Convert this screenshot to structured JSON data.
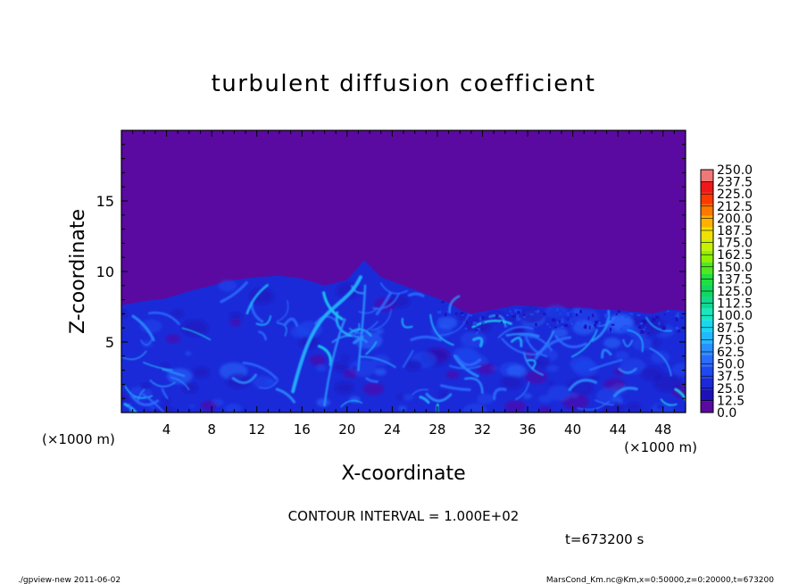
{
  "chart_data": {
    "type": "heatmap",
    "title": "turbulent diffusion coefficient",
    "xlabel": "X-coordinate",
    "ylabel": "Z-coordinate",
    "x_unit": "(×1000 m)",
    "y_unit": "(×1000 m)",
    "xlim": [
      0,
      50
    ],
    "ylim": [
      0,
      20
    ],
    "x_ticks": [
      "4",
      "8",
      "12",
      "16",
      "20",
      "24",
      "28",
      "32",
      "36",
      "40",
      "44",
      "48"
    ],
    "y_ticks": [
      "5",
      "10",
      "15"
    ],
    "colorbar": {
      "levels": [
        "0.0",
        "12.5",
        "25.0",
        "37.5",
        "50.0",
        "62.5",
        "75.0",
        "87.5",
        "100.0",
        "112.5",
        "125.0",
        "137.5",
        "150.0",
        "162.5",
        "175.0",
        "187.5",
        "200.0",
        "212.5",
        "225.0",
        "237.5",
        "250.0"
      ],
      "colors": [
        "#5a0aa0",
        "#1e10b8",
        "#1a2ad8",
        "#1e48f0",
        "#2a6cff",
        "#2a90ff",
        "#22b8ff",
        "#18d8f0",
        "#18e8c0",
        "#10d890",
        "#10d860",
        "#20e040",
        "#50e820",
        "#90f000",
        "#c8f000",
        "#f0e000",
        "#ffb000",
        "#ff7800",
        "#ff3a00",
        "#f01818",
        "#f07878"
      ]
    },
    "background_value": "0.0",
    "contour_interval": "CONTOUR INTERVAL = 1.000E+02",
    "time_label": "t=673200 s"
  },
  "footer": {
    "left": "./gpview-new   2011-06-02",
    "right": "MarsCond_Km.nc@Km,x=0:50000,z=0:20000,t=673200"
  }
}
